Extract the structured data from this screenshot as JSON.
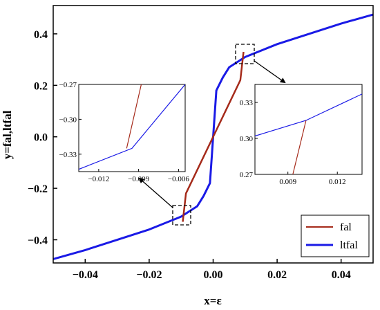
{
  "chart_data": {
    "type": "line",
    "xlabel": "x=ε",
    "ylabel": "y=fal,ltfal",
    "xlim": [
      -0.05,
      0.05
    ],
    "ylim": [
      -0.49,
      0.51
    ],
    "xticks": [
      "-0.04",
      "-0.02",
      "0.00",
      "0.02",
      "0.04"
    ],
    "yticks": [
      "-0.4",
      "-0.2",
      "0.0",
      "0.2",
      "0.4"
    ],
    "legend": {
      "position": "bottom-right",
      "entries": [
        "fal",
        "ltfal"
      ]
    },
    "colors": {
      "fal": "#a52a1a",
      "ltfal": "#1a1ae6"
    },
    "series": [
      {
        "name": "fal",
        "x": [
          -0.0095,
          -0.0085,
          0.0,
          0.0085,
          0.0095
        ],
        "y": [
          -0.33,
          -0.22,
          0.0,
          0.22,
          0.33
        ]
      },
      {
        "name": "ltfal",
        "x": [
          -0.05,
          -0.04,
          -0.03,
          -0.02,
          -0.01,
          -0.005,
          -0.003,
          -0.001,
          0.0,
          0.001,
          0.003,
          0.005,
          0.01,
          0.02,
          0.03,
          0.04,
          0.05
        ],
        "y": [
          -0.475,
          -0.44,
          -0.4,
          -0.36,
          -0.31,
          -0.27,
          -0.23,
          -0.18,
          0.0,
          0.18,
          0.23,
          0.27,
          0.31,
          0.36,
          0.4,
          0.44,
          0.475
        ]
      }
    ],
    "insets": [
      {
        "id": "left",
        "xlim": [
          -0.0135,
          -0.0055
        ],
        "ylim": [
          -0.345,
          -0.27
        ],
        "xticks": [
          "-0.012",
          "-0.009",
          "-0.006"
        ],
        "yticks": [
          "-0.27",
          "-0.30",
          "-0.33"
        ],
        "fal": {
          "x": [
            -0.0099,
            -0.0088
          ],
          "y": [
            -0.325,
            -0.27
          ]
        },
        "ltfal": {
          "x": [
            -0.0135,
            -0.0095,
            -0.0055
          ],
          "y": [
            -0.343,
            -0.325,
            -0.27
          ]
        }
      },
      {
        "id": "right",
        "xlim": [
          0.007,
          0.0135
        ],
        "ylim": [
          0.27,
          0.345
        ],
        "xticks": [
          "0.009",
          "0.012"
        ],
        "yticks": [
          "0.33",
          "0.30",
          "0.27"
        ],
        "fal": {
          "x": [
            0.0093,
            0.0101
          ],
          "y": [
            0.27,
            0.315
          ]
        },
        "ltfal": {
          "x": [
            0.007,
            0.0101,
            0.0135
          ],
          "y": [
            0.302,
            0.315,
            0.337
          ]
        }
      }
    ]
  }
}
